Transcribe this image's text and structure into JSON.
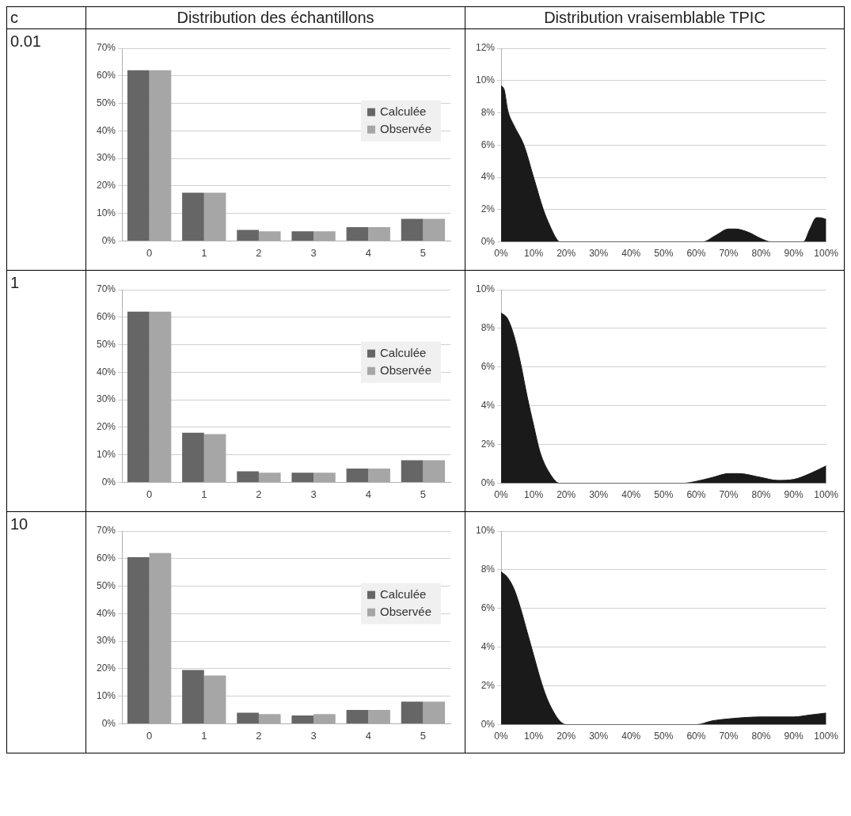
{
  "chart_data": [
    {
      "type": "other",
      "title": "c",
      "annotations": [
        "0.01",
        "1",
        "10"
      ]
    },
    {
      "type": "bar",
      "title": "Distribution des échantillons",
      "categories": [
        "0",
        "1",
        "2",
        "3",
        "4",
        "5"
      ],
      "series": [
        {
          "name": "Calculée",
          "color": "#666666",
          "values": [
            62,
            17.5,
            4,
            3.5,
            5,
            8
          ]
        },
        {
          "name": "Observée",
          "color": "#a6a6a6",
          "values": [
            62,
            17.5,
            3.5,
            3.5,
            5,
            8
          ]
        }
      ],
      "ylim": [
        0,
        70
      ],
      "yticks": [
        {
          "value": 0,
          "label": "0%"
        },
        {
          "value": 10,
          "label": "10%"
        },
        {
          "value": 20,
          "label": "20%"
        },
        {
          "value": 30,
          "label": "30%"
        },
        {
          "value": 40,
          "label": "40%"
        },
        {
          "value": 50,
          "label": "50%"
        },
        {
          "value": 60,
          "label": "60%"
        },
        {
          "value": 70,
          "label": "70%"
        }
      ],
      "grid": "y",
      "legend": "right"
    },
    {
      "type": "area",
      "title": "Distribution vraisemblable TPIC",
      "x": [
        0,
        1,
        2,
        4,
        7,
        10,
        13,
        15,
        17,
        18,
        60,
        62,
        66,
        70,
        72,
        76,
        80,
        83,
        93,
        95,
        97,
        98,
        100
      ],
      "series": [
        {
          "color": "#1a1a1a",
          "values": [
            9.7,
            9.4,
            8.2,
            7.2,
            6,
            4,
            2,
            1,
            0.2,
            0,
            0,
            0,
            0.4,
            0.8,
            0.8,
            0.6,
            0.2,
            0,
            0,
            0.8,
            1.5,
            1.5,
            1.4
          ]
        }
      ],
      "xlim": [
        0,
        100
      ],
      "xticks": [
        {
          "value": 0,
          "label": "0%"
        },
        {
          "value": 10,
          "label": "10%"
        },
        {
          "value": 20,
          "label": "20%"
        },
        {
          "value": 30,
          "label": "30%"
        },
        {
          "value": 40,
          "label": "40%"
        },
        {
          "value": 50,
          "label": "50%"
        },
        {
          "value": 60,
          "label": "60%"
        },
        {
          "value": 70,
          "label": "70%"
        },
        {
          "value": 80,
          "label": "80%"
        },
        {
          "value": 90,
          "label": "90%"
        },
        {
          "value": 100,
          "label": "100%"
        }
      ],
      "ylim": [
        0,
        12
      ],
      "yticks": [
        {
          "value": 0,
          "label": "0%"
        },
        {
          "value": 2,
          "label": "2%"
        },
        {
          "value": 4,
          "label": "4%"
        },
        {
          "value": 6,
          "label": "6%"
        },
        {
          "value": 8,
          "label": "8%"
        },
        {
          "value": 10,
          "label": "10%"
        },
        {
          "value": 12,
          "label": "12%"
        }
      ],
      "grid": "y"
    },
    {
      "type": "bar",
      "categories": [
        "0",
        "1",
        "2",
        "3",
        "4",
        "5"
      ],
      "series": [
        {
          "name": "Calculée",
          "color": "#666666",
          "values": [
            62,
            18,
            4,
            3.5,
            5,
            8
          ]
        },
        {
          "name": "Observée",
          "color": "#a6a6a6",
          "values": [
            62,
            17.5,
            3.5,
            3.5,
            5,
            8
          ]
        }
      ],
      "ylim": [
        0,
        70
      ],
      "yticks": [
        {
          "value": 0,
          "label": "0%"
        },
        {
          "value": 10,
          "label": "10%"
        },
        {
          "value": 20,
          "label": "20%"
        },
        {
          "value": 30,
          "label": "30%"
        },
        {
          "value": 40,
          "label": "40%"
        },
        {
          "value": 50,
          "label": "50%"
        },
        {
          "value": 60,
          "label": "60%"
        },
        {
          "value": 70,
          "label": "70%"
        }
      ],
      "grid": "y",
      "legend": "right"
    },
    {
      "type": "area",
      "x": [
        0,
        2,
        4,
        6,
        8,
        10,
        12,
        15,
        18,
        56,
        60,
        65,
        70,
        73,
        80,
        85,
        90,
        95,
        100
      ],
      "series": [
        {
          "color": "#1a1a1a",
          "values": [
            8.8,
            8.5,
            7.6,
            6.2,
            4.5,
            3,
            1.6,
            0.5,
            0,
            0,
            0.1,
            0.3,
            0.5,
            0.5,
            0.3,
            0.15,
            0.2,
            0.5,
            0.9
          ]
        }
      ],
      "xlim": [
        0,
        100
      ],
      "xticks": [
        {
          "value": 0,
          "label": "0%"
        },
        {
          "value": 10,
          "label": "10%"
        },
        {
          "value": 20,
          "label": "20%"
        },
        {
          "value": 30,
          "label": "30%"
        },
        {
          "value": 40,
          "label": "40%"
        },
        {
          "value": 50,
          "label": "50%"
        },
        {
          "value": 60,
          "label": "60%"
        },
        {
          "value": 70,
          "label": "70%"
        },
        {
          "value": 80,
          "label": "80%"
        },
        {
          "value": 90,
          "label": "90%"
        },
        {
          "value": 100,
          "label": "100%"
        }
      ],
      "ylim": [
        0,
        10
      ],
      "yticks": [
        {
          "value": 0,
          "label": "0%"
        },
        {
          "value": 2,
          "label": "2%"
        },
        {
          "value": 4,
          "label": "4%"
        },
        {
          "value": 6,
          "label": "6%"
        },
        {
          "value": 8,
          "label": "8%"
        },
        {
          "value": 10,
          "label": "10%"
        }
      ],
      "grid": "y"
    },
    {
      "type": "bar",
      "categories": [
        "0",
        "1",
        "2",
        "3",
        "4",
        "5"
      ],
      "series": [
        {
          "name": "Calculée",
          "color": "#666666",
          "values": [
            60.5,
            19.5,
            4,
            3,
            5,
            8
          ]
        },
        {
          "name": "Observée",
          "color": "#a6a6a6",
          "values": [
            62,
            17.5,
            3.5,
            3.5,
            5,
            8
          ]
        }
      ],
      "ylim": [
        0,
        70
      ],
      "yticks": [
        {
          "value": 0,
          "label": "0%"
        },
        {
          "value": 10,
          "label": "10%"
        },
        {
          "value": 20,
          "label": "20%"
        },
        {
          "value": 30,
          "label": "30%"
        },
        {
          "value": 40,
          "label": "40%"
        },
        {
          "value": 50,
          "label": "50%"
        },
        {
          "value": 60,
          "label": "60%"
        },
        {
          "value": 70,
          "label": "70%"
        }
      ],
      "grid": "y",
      "legend": "right"
    },
    {
      "type": "area",
      "x": [
        0,
        2,
        4,
        6,
        8,
        10,
        12,
        14,
        16,
        18,
        20,
        60,
        65,
        70,
        80,
        90,
        95,
        100
      ],
      "series": [
        {
          "color": "#1a1a1a",
          "values": [
            7.9,
            7.6,
            7,
            6,
            4.8,
            3.6,
            2.4,
            1.4,
            0.7,
            0.2,
            0,
            0,
            0.2,
            0.3,
            0.4,
            0.4,
            0.5,
            0.6
          ]
        }
      ],
      "xlim": [
        0,
        100
      ],
      "xticks": [
        {
          "value": 0,
          "label": "0%"
        },
        {
          "value": 10,
          "label": "10%"
        },
        {
          "value": 20,
          "label": "20%"
        },
        {
          "value": 30,
          "label": "30%"
        },
        {
          "value": 40,
          "label": "40%"
        },
        {
          "value": 50,
          "label": "50%"
        },
        {
          "value": 60,
          "label": "60%"
        },
        {
          "value": 70,
          "label": "70%"
        },
        {
          "value": 80,
          "label": "80%"
        },
        {
          "value": 90,
          "label": "90%"
        },
        {
          "value": 100,
          "label": "100%"
        }
      ],
      "ylim": [
        0,
        10
      ],
      "yticks": [
        {
          "value": 0,
          "label": "0%"
        },
        {
          "value": 2,
          "label": "2%"
        },
        {
          "value": 4,
          "label": "4%"
        },
        {
          "value": 6,
          "label": "6%"
        },
        {
          "value": 8,
          "label": "8%"
        },
        {
          "value": 10,
          "label": "10%"
        }
      ],
      "grid": "y"
    }
  ]
}
